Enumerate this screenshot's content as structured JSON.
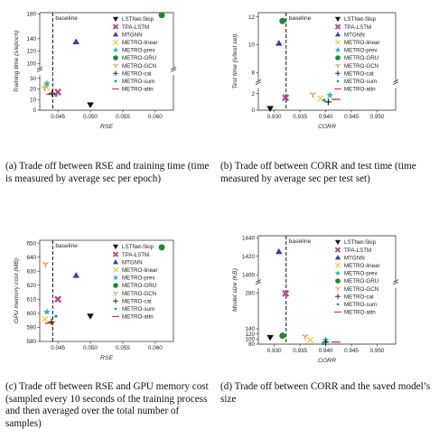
{
  "legend_entries": [
    {
      "label": "LSTNet-Skip",
      "color": "#111111",
      "marker": "tri-down"
    },
    {
      "label": "TPA-LSTM",
      "color": "#b5459a",
      "marker": "x-bold"
    },
    {
      "label": "MTGNN",
      "color": "#2b3fb4",
      "marker": "tri-up"
    },
    {
      "label": "METRO-linear",
      "color": "#f2c416",
      "marker": "x"
    },
    {
      "label": "METRO-prev",
      "color": "#2ab6c0",
      "marker": "star"
    },
    {
      "label": "METRO-GRU",
      "color": "#1b8a2e",
      "marker": "circle"
    },
    {
      "label": "METRO-GCN",
      "color": "#f28c38",
      "marker": "tri-y"
    },
    {
      "label": "METRO-cat",
      "color": "#111111",
      "marker": "plus"
    },
    {
      "label": "METRO-sum",
      "color": "#1f8fbf",
      "marker": "dot"
    },
    {
      "label": "METRO-attn",
      "color": "#d11f1f",
      "marker": "hline"
    }
  ],
  "captions": {
    "a": "(a)  Trade off between RSE and training time (time is measured by average sec per epoch)",
    "b": "(b)  Trade off between CORR and test time (time measured by average sec per test set)",
    "c": "(c)  Trade off between RSE and GPU memory cost (sampled every 10 seconds of the training process and then averaged over the total number of samples)",
    "d": "(d)  Trade off between CORR and the saved model’s size"
  },
  "chart_data": [
    {
      "id": "a",
      "type": "scatter",
      "xlabel": "RSE",
      "ylabel": "Training time (s/epoch)",
      "xticks": [
        "0.045",
        "0.050",
        "0.055",
        "0.060"
      ],
      "xlim": [
        0.0422,
        0.0628
      ],
      "yticks_low": [
        "0",
        "10",
        "20",
        "30"
      ],
      "ylow": [
        0,
        33
      ],
      "yticks_high": [
        "100",
        "120",
        "140",
        "180"
      ],
      "yhigh": [
        90,
        182
      ],
      "baseline": {
        "label": "baseline",
        "x": 0.0442
      },
      "points": [
        {
          "s": 0,
          "x": 0.05,
          "y": 5
        },
        {
          "s": 1,
          "x": 0.045,
          "y": 17
        },
        {
          "s": 2,
          "x": 0.0478,
          "y": 135
        },
        {
          "s": 3,
          "x": 0.0432,
          "y": 22
        },
        {
          "s": 4,
          "x": 0.0433,
          "y": 25
        },
        {
          "s": 5,
          "x": 0.061,
          "y": 178
        },
        {
          "s": 6,
          "x": 0.043,
          "y": 21
        },
        {
          "s": 7,
          "x": 0.0441,
          "y": 16
        },
        {
          "s": 8,
          "x": 0.0447,
          "y": 14
        },
        {
          "s": 9,
          "x": 0.0439,
          "y": 15
        }
      ]
    },
    {
      "id": "b",
      "type": "scatter",
      "xlabel": "CORR",
      "ylabel": "Test time (s/test set)",
      "xticks": [
        "0.930",
        "0.935",
        "0.940",
        "0.945",
        "0.950"
      ],
      "xlim": [
        0.9269,
        0.9536
      ],
      "yticks_low": [
        "0",
        "2"
      ],
      "ylow": [
        0,
        2.7
      ],
      "yticks_high": [
        "8",
        "10",
        "12"
      ],
      "yhigh": [
        7.3,
        12.3
      ],
      "baseline": {
        "label": "baseline",
        "x": 0.9323
      },
      "points": [
        {
          "s": 0,
          "x": 0.9292,
          "y": 0.2
        },
        {
          "s": 1,
          "x": 0.9322,
          "y": 1.5
        },
        {
          "s": 2,
          "x": 0.9309,
          "y": 10.1
        },
        {
          "s": 3,
          "x": 0.939,
          "y": 1.4
        },
        {
          "s": 4,
          "x": 0.9408,
          "y": 1.8
        },
        {
          "s": 5,
          "x": 0.9316,
          "y": 11.7
        },
        {
          "s": 6,
          "x": 0.9375,
          "y": 1.9
        },
        {
          "s": 7,
          "x": 0.9405,
          "y": 1.0
        },
        {
          "s": 8,
          "x": 0.9397,
          "y": 1.2
        },
        {
          "s": 9,
          "x": 0.942,
          "y": 1.3
        }
      ]
    },
    {
      "id": "c",
      "type": "scatter",
      "xlabel": "RSE",
      "ylabel": "GPU memory cost (MB)",
      "xticks": [
        "0.045",
        "0.050",
        "0.055",
        "0.060"
      ],
      "xlim": [
        0.0422,
        0.0628
      ],
      "yticks": [
        "580",
        "590",
        "600",
        "610",
        "620",
        "630",
        "640",
        "650"
      ],
      "ylim": [
        580,
        652
      ],
      "baseline": {
        "label": "baseline",
        "x": 0.0442
      },
      "points": [
        {
          "s": 0,
          "x": 0.05,
          "y": 598
        },
        {
          "s": 1,
          "x": 0.045,
          "y": 610
        },
        {
          "s": 2,
          "x": 0.0478,
          "y": 627
        },
        {
          "s": 3,
          "x": 0.043,
          "y": 596
        },
        {
          "s": 4,
          "x": 0.0433,
          "y": 601
        },
        {
          "s": 5,
          "x": 0.061,
          "y": 647
        },
        {
          "s": 6,
          "x": 0.0431,
          "y": 635
        },
        {
          "s": 7,
          "x": 0.044,
          "y": 594
        },
        {
          "s": 8,
          "x": 0.0447,
          "y": 598
        },
        {
          "s": 9,
          "x": 0.0437,
          "y": 593
        }
      ]
    },
    {
      "id": "d",
      "type": "scatter",
      "xlabel": "CORR",
      "ylabel": "Model size (KB)",
      "xticks": [
        "0.930",
        "0.935",
        "0.940",
        "0.945",
        "0.950"
      ],
      "xlim": [
        0.9269,
        0.9536
      ],
      "yticks_low": [
        "80",
        "100",
        "120",
        "140",
        "280"
      ],
      "ylow": [
        80,
        300
      ],
      "yticks_high": [
        "1400",
        "1420",
        "1440"
      ],
      "yhigh": [
        1392,
        1442
      ],
      "baseline": {
        "label": "baseline",
        "x": 0.9323
      },
      "points": [
        {
          "s": 0,
          "x": 0.9292,
          "y": 106
        },
        {
          "s": 1,
          "x": 0.9322,
          "y": 278
        },
        {
          "s": 2,
          "x": 0.9309,
          "y": 1425
        },
        {
          "s": 3,
          "x": 0.937,
          "y": 96
        },
        {
          "s": 4,
          "x": 0.94,
          "y": 96
        },
        {
          "s": 5,
          "x": 0.9316,
          "y": 113
        },
        {
          "s": 6,
          "x": 0.936,
          "y": 110
        },
        {
          "s": 7,
          "x": 0.94,
          "y": 88
        },
        {
          "s": 8,
          "x": 0.9395,
          "y": 82
        },
        {
          "s": 9,
          "x": 0.942,
          "y": 88
        }
      ]
    }
  ]
}
